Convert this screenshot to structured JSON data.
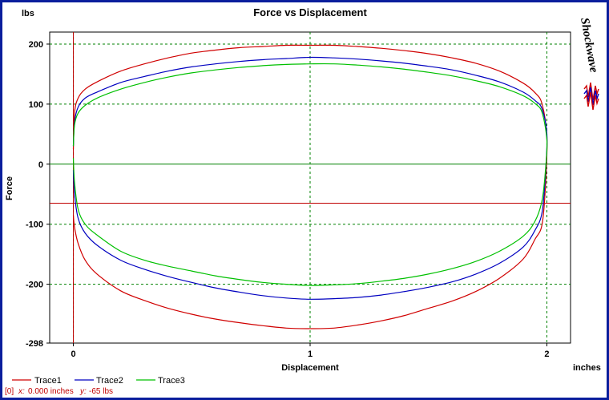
{
  "chart_data": {
    "type": "line",
    "title": "Force vs Displacement",
    "xlabel": "Displacement",
    "ylabel": "Force",
    "x_unit": "inches",
    "y_unit": "lbs",
    "xlim": [
      -0.1,
      2.1
    ],
    "ylim": [
      -298,
      220
    ],
    "x_ticks": [
      "0",
      "1",
      "2"
    ],
    "x_tick_values": [
      0,
      1,
      2
    ],
    "y_ticks": [
      "200",
      "100",
      "0",
      "-100",
      "-200",
      "-298"
    ],
    "y_tick_values": [
      200,
      100,
      0,
      -100,
      -200,
      -298
    ],
    "grid": true,
    "legend_position": "bottom-left",
    "zero_line_color": "#008000",
    "cursor": {
      "x": 0.0,
      "y": -65,
      "color": "#c00000"
    },
    "series": [
      {
        "name": "Trace1",
        "color": "#d00000",
        "upper": [
          [
            0,
            25
          ],
          [
            0.005,
            85
          ],
          [
            0.02,
            110
          ],
          [
            0.05,
            125
          ],
          [
            0.1,
            137
          ],
          [
            0.2,
            155
          ],
          [
            0.3,
            167
          ],
          [
            0.4,
            177
          ],
          [
            0.5,
            185
          ],
          [
            0.6,
            190
          ],
          [
            0.7,
            194
          ],
          [
            0.8,
            196
          ],
          [
            0.9,
            198
          ],
          [
            1.0,
            198
          ],
          [
            1.1,
            198
          ],
          [
            1.2,
            196
          ],
          [
            1.3,
            193
          ],
          [
            1.4,
            189
          ],
          [
            1.5,
            184
          ],
          [
            1.6,
            177
          ],
          [
            1.7,
            168
          ],
          [
            1.8,
            155
          ],
          [
            1.9,
            135
          ],
          [
            1.95,
            119
          ],
          [
            1.98,
            100
          ],
          [
            2.0,
            45
          ]
        ],
        "lower": [
          [
            2.0,
            45
          ],
          [
            1.995,
            -30
          ],
          [
            1.98,
            -100
          ],
          [
            1.95,
            -125
          ],
          [
            1.9,
            -158
          ],
          [
            1.8,
            -190
          ],
          [
            1.7,
            -212
          ],
          [
            1.6,
            -228
          ],
          [
            1.5,
            -240
          ],
          [
            1.4,
            -252
          ],
          [
            1.3,
            -261
          ],
          [
            1.2,
            -268
          ],
          [
            1.1,
            -273
          ],
          [
            1.0,
            -274
          ],
          [
            0.9,
            -273
          ],
          [
            0.8,
            -269
          ],
          [
            0.7,
            -264
          ],
          [
            0.6,
            -258
          ],
          [
            0.5,
            -250
          ],
          [
            0.4,
            -240
          ],
          [
            0.3,
            -227
          ],
          [
            0.2,
            -211
          ],
          [
            0.1,
            -183
          ],
          [
            0.05,
            -160
          ],
          [
            0.02,
            -132
          ],
          [
            0.005,
            -105
          ],
          [
            0,
            -85
          ]
        ]
      },
      {
        "name": "Trace2",
        "color": "#0000c0",
        "upper": [
          [
            0,
            30
          ],
          [
            0.005,
            70
          ],
          [
            0.02,
            95
          ],
          [
            0.05,
            110
          ],
          [
            0.1,
            120
          ],
          [
            0.2,
            136
          ],
          [
            0.3,
            146
          ],
          [
            0.4,
            155
          ],
          [
            0.5,
            162
          ],
          [
            0.6,
            167
          ],
          [
            0.7,
            171
          ],
          [
            0.8,
            174
          ],
          [
            0.9,
            176
          ],
          [
            1.0,
            178
          ],
          [
            1.1,
            177
          ],
          [
            1.2,
            175
          ],
          [
            1.3,
            172
          ],
          [
            1.4,
            168
          ],
          [
            1.5,
            163
          ],
          [
            1.6,
            157
          ],
          [
            1.7,
            148
          ],
          [
            1.8,
            137
          ],
          [
            1.9,
            120
          ],
          [
            1.95,
            106
          ],
          [
            1.98,
            92
          ],
          [
            2.0,
            50
          ]
        ],
        "lower": [
          [
            2.0,
            50
          ],
          [
            1.995,
            -10
          ],
          [
            1.98,
            -80
          ],
          [
            1.95,
            -110
          ],
          [
            1.9,
            -138
          ],
          [
            1.8,
            -165
          ],
          [
            1.7,
            -183
          ],
          [
            1.6,
            -196
          ],
          [
            1.5,
            -205
          ],
          [
            1.4,
            -212
          ],
          [
            1.3,
            -218
          ],
          [
            1.2,
            -222
          ],
          [
            1.1,
            -224
          ],
          [
            1.0,
            -225
          ],
          [
            0.9,
            -223
          ],
          [
            0.8,
            -219
          ],
          [
            0.7,
            -213
          ],
          [
            0.6,
            -206
          ],
          [
            0.5,
            -197
          ],
          [
            0.4,
            -187
          ],
          [
            0.3,
            -175
          ],
          [
            0.2,
            -160
          ],
          [
            0.1,
            -135
          ],
          [
            0.05,
            -115
          ],
          [
            0.02,
            -90
          ],
          [
            0.005,
            -50
          ],
          [
            0,
            -10
          ]
        ]
      },
      {
        "name": "Trace3",
        "color": "#00c000",
        "upper": [
          [
            0,
            30
          ],
          [
            0.005,
            65
          ],
          [
            0.02,
            85
          ],
          [
            0.05,
            98
          ],
          [
            0.1,
            110
          ],
          [
            0.2,
            125
          ],
          [
            0.3,
            136
          ],
          [
            0.4,
            145
          ],
          [
            0.5,
            152
          ],
          [
            0.6,
            157
          ],
          [
            0.7,
            161
          ],
          [
            0.8,
            164
          ],
          [
            0.9,
            166
          ],
          [
            1.0,
            167
          ],
          [
            1.1,
            167
          ],
          [
            1.2,
            165
          ],
          [
            1.3,
            162
          ],
          [
            1.4,
            158
          ],
          [
            1.5,
            153
          ],
          [
            1.6,
            147
          ],
          [
            1.7,
            139
          ],
          [
            1.8,
            129
          ],
          [
            1.9,
            114
          ],
          [
            1.95,
            101
          ],
          [
            1.98,
            86
          ],
          [
            2.0,
            40
          ]
        ],
        "lower": [
          [
            2.0,
            40
          ],
          [
            1.995,
            -5
          ],
          [
            1.98,
            -60
          ],
          [
            1.95,
            -95
          ],
          [
            1.9,
            -120
          ],
          [
            1.8,
            -145
          ],
          [
            1.7,
            -162
          ],
          [
            1.6,
            -174
          ],
          [
            1.5,
            -183
          ],
          [
            1.4,
            -190
          ],
          [
            1.3,
            -195
          ],
          [
            1.2,
            -199
          ],
          [
            1.1,
            -201
          ],
          [
            1.0,
            -202
          ],
          [
            0.9,
            -200
          ],
          [
            0.8,
            -197
          ],
          [
            0.7,
            -192
          ],
          [
            0.6,
            -186
          ],
          [
            0.5,
            -178
          ],
          [
            0.4,
            -170
          ],
          [
            0.3,
            -160
          ],
          [
            0.2,
            -145
          ],
          [
            0.1,
            -118
          ],
          [
            0.05,
            -100
          ],
          [
            0.02,
            -75
          ],
          [
            0.005,
            -30
          ],
          [
            0,
            10
          ]
        ]
      }
    ]
  },
  "status": {
    "index": "[0]",
    "x_label": "x:",
    "x_value": "0.000 inches",
    "y_label": "y:",
    "y_value": "-65 lbs"
  },
  "logo": {
    "text": "Shockwave"
  }
}
